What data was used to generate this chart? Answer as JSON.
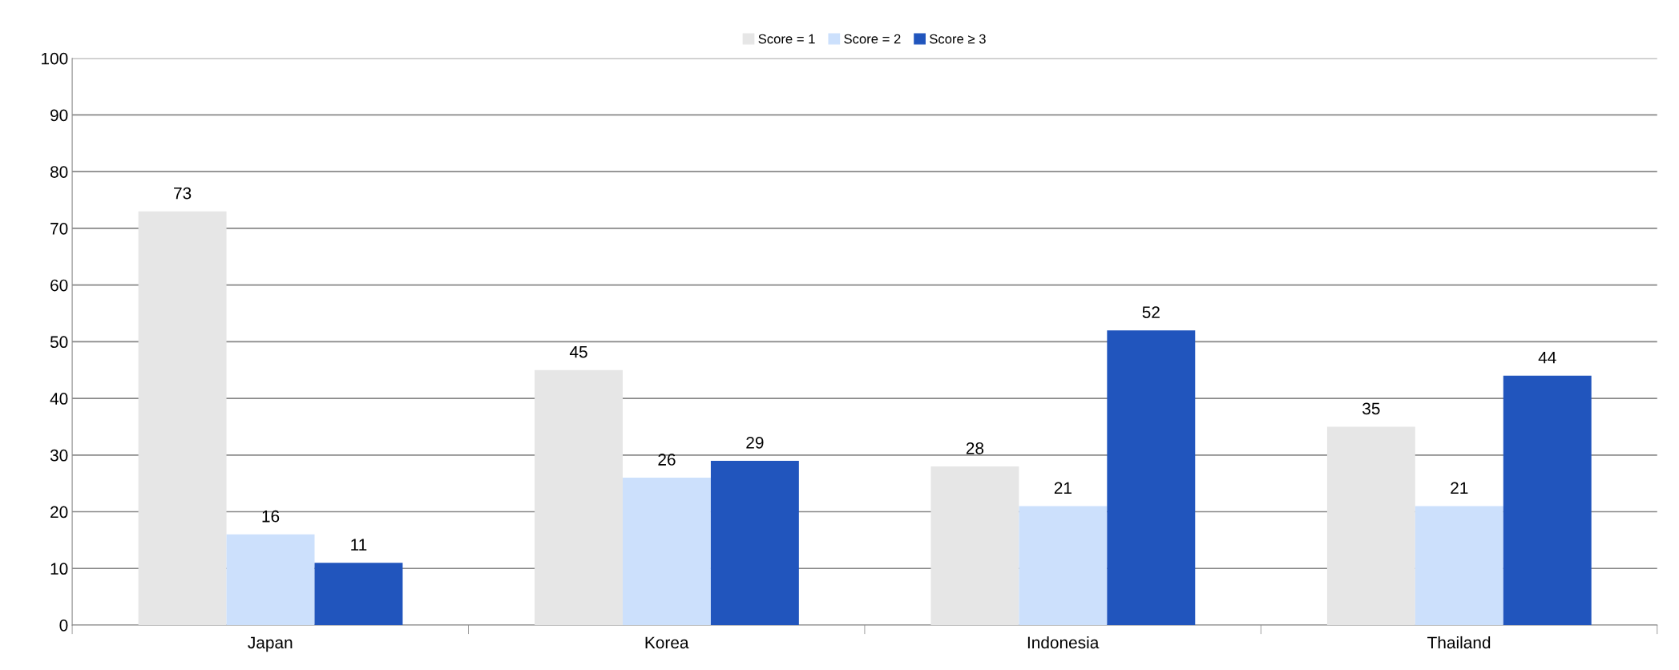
{
  "chart_data": {
    "type": "bar",
    "categories": [
      "Japan",
      "Korea",
      "Indonesia",
      "Thailand"
    ],
    "series": [
      {
        "name": "Score = 1",
        "color": "#e6e6e6",
        "values": [
          73,
          45,
          28,
          35
        ]
      },
      {
        "name": "Score = 2",
        "color": "#cce0fc",
        "values": [
          16,
          26,
          21,
          21
        ]
      },
      {
        "name": "Score ≥ 3",
        "color": "#2155bd",
        "values": [
          11,
          29,
          52,
          44
        ]
      }
    ],
    "ylim": [
      0,
      100
    ],
    "yticks": [
      0,
      10,
      20,
      30,
      40,
      50,
      60,
      70,
      80,
      90,
      100
    ],
    "grid": "y",
    "legend": "top",
    "data_labels": true
  }
}
